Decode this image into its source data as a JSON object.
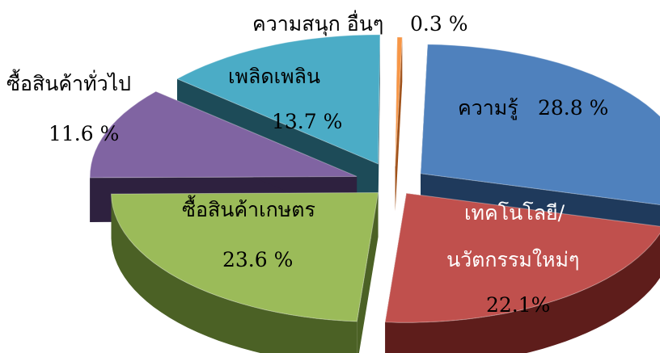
{
  "chart_data": {
    "type": "pie",
    "style": "3d-exploded",
    "title": "",
    "slices": [
      {
        "label": "ความรู้",
        "value": 28.8,
        "value_text": "28.8 %",
        "color": "#4F81BD",
        "side": "#1F3A5C"
      },
      {
        "label": "เทคโนโลยี/ นวัตกรรมใหม่ๆ",
        "label_line1": "เทคโนโลยี/",
        "label_line2": "นวัตกรรมใหม่ๆ",
        "value": 22.1,
        "value_text": "22.1%",
        "color": "#C0504D",
        "side": "#5E1D1B"
      },
      {
        "label": "ซื้อสินค้าเกษตร",
        "value": 23.6,
        "value_text": "23.6 %",
        "color": "#9BBB59",
        "side": "#4B6125"
      },
      {
        "label": "ซื้อสินค้าทั่วไป",
        "value": 11.6,
        "value_text": "11.6 %",
        "color": "#8064A2",
        "side": "#2E213F"
      },
      {
        "label": "เพลิดเพลิน",
        "value": 13.7,
        "value_text": "13.7 %",
        "color": "#4BACC6",
        "side": "#1D4B58"
      },
      {
        "label": "ความสนุก อื่นๆ",
        "value": 0.3,
        "value_text": "0.3 %",
        "color": "#F79646",
        "side": "#A0521A"
      }
    ]
  }
}
